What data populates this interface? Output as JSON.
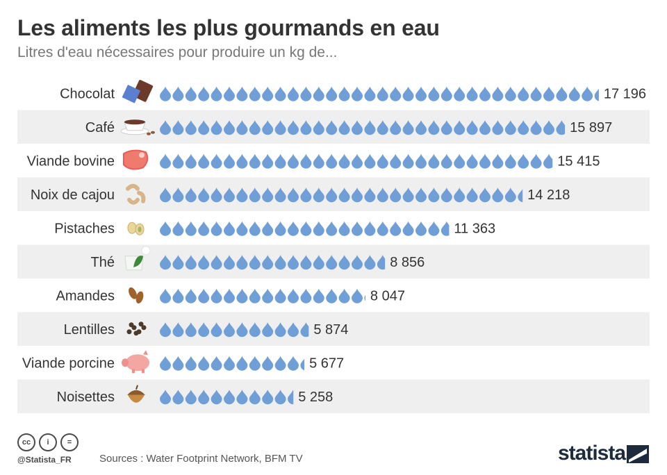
{
  "title": "Les aliments les plus gourmands en eau",
  "subtitle": "Litres d'eau nécessaires pour produire un kg de...",
  "colors": {
    "drop": "#6f9fd6",
    "row_band": "#efefef",
    "text": "#333333",
    "brand": "#1e2b3c"
  },
  "chart_data": {
    "type": "bar",
    "title": "Les aliments les plus gourmands en eau",
    "subtitle": "Litres d'eau nécessaires pour produire un kg de...",
    "categories": [
      "Chocolat",
      "Café",
      "Viande bovine",
      "Noix de cajou",
      "Pistaches",
      "Thé",
      "Amandes",
      "Lentilles",
      "Viande porcine",
      "Noisettes"
    ],
    "values": [
      17196,
      15897,
      15415,
      14218,
      11363,
      8856,
      8047,
      5874,
      5677,
      5258
    ],
    "value_labels": [
      "17 196",
      "15 897",
      "15 415",
      "14 218",
      "11 363",
      "8 856",
      "8 047",
      "5 874",
      "5 677",
      "5 258"
    ],
    "icons": [
      "chocolate-bar-icon",
      "coffee-cup-icon",
      "beef-steak-icon",
      "cashew-icon",
      "pistachio-icon",
      "tea-cup-icon",
      "almond-icon",
      "lentils-icon",
      "pig-icon",
      "hazelnut-icon"
    ],
    "unit_per_drop": 500,
    "xlabel": "",
    "ylabel": ""
  },
  "footer": {
    "handle": "@Statista_FR",
    "sources": "Sources : Water Footprint Network, BFM TV",
    "brand": "statista",
    "license_icons": [
      "cc-icon",
      "attribution-icon",
      "no-derivatives-icon"
    ],
    "license_glyphs": [
      "cc",
      "i",
      "="
    ]
  }
}
